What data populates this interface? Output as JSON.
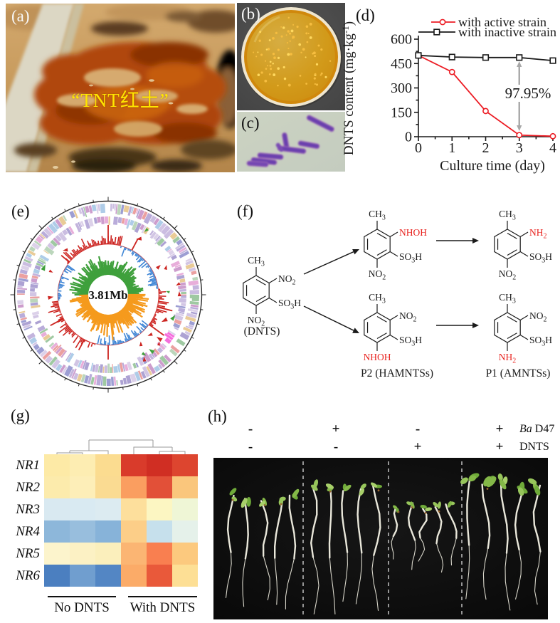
{
  "panels": {
    "a": {
      "label": "(a)",
      "overlay_text": "“TNT红土”",
      "overlay_color": "#ffe600"
    },
    "b": {
      "label": "(b)"
    },
    "c": {
      "label": "(c)"
    },
    "d": {
      "label": "(d)"
    },
    "e": {
      "label": "(e)",
      "center_label": "3.81Mb"
    },
    "f": {
      "label": "(f)",
      "red_color": "#e8231f",
      "molecules": [
        {
          "id": "dnts",
          "top": "CH3",
          "upper_right": "NO2",
          "right": "SO3H",
          "bottom": "NO2",
          "red": "",
          "caption": "(DNTS)"
        },
        {
          "id": "m1",
          "top": "CH3",
          "upper_right": "NHOH",
          "right": "SO3H",
          "bottom": "NO2",
          "red": "upper_right",
          "caption": ""
        },
        {
          "id": "r1",
          "top": "CH3",
          "upper_right": "NH2",
          "right": "SO3H",
          "bottom": "NO2",
          "red": "upper_right",
          "caption": ""
        },
        {
          "id": "m2",
          "top": "CH3",
          "upper_right": "NO2",
          "right": "SO3H",
          "bottom": "NHOH",
          "red": "bottom",
          "caption": "P2 (HAMNTSs)"
        },
        {
          "id": "r2",
          "top": "CH3",
          "upper_right": "NO2",
          "right": "SO3H",
          "bottom": "NH2",
          "red": "bottom",
          "caption": "P1 (AMNTSs)"
        }
      ]
    },
    "g": {
      "label": "(g)"
    },
    "h": {
      "label": "(h)",
      "conditions": [
        {
          "signs": [
            "-",
            "+",
            "-",
            "+"
          ],
          "factor_italic": "Ba",
          "factor_rest": " D47"
        },
        {
          "signs": [
            "-",
            "-",
            "+",
            "+"
          ],
          "factor_italic": "",
          "factor_rest": "DNTS"
        }
      ]
    }
  },
  "chart_data": [
    {
      "type": "line",
      "panel": "d",
      "title": "",
      "xlabel": "Culture time (day)",
      "ylabel": "DNTS content (mg·kg⁻¹)",
      "ylabel_parts": {
        "pre": "DNTS content (mg·kg",
        "sup": "-1",
        "post": ")"
      },
      "x": [
        0,
        1,
        2,
        3,
        4
      ],
      "xticks": [
        "0",
        "1",
        "2",
        "3",
        "4"
      ],
      "yticks": [
        0,
        150,
        300,
        450,
        600
      ],
      "ylim": [
        0,
        600
      ],
      "grid": false,
      "legend_position": "top",
      "series": [
        {
          "name": "with active strain",
          "color": "#ec1c24",
          "marker": "circle",
          "values": [
            500,
            398,
            158,
            10,
            3
          ],
          "errors": [
            10,
            12,
            9,
            4,
            4
          ]
        },
        {
          "name": "with inactive strain",
          "color": "#1a1a1a",
          "marker": "square",
          "values": [
            500,
            490,
            487,
            487,
            468
          ],
          "errors": [
            10,
            8,
            8,
            8,
            14
          ]
        }
      ],
      "annotation": {
        "text": "97.95%",
        "x": 3,
        "arrow_color": "#a8a8a8"
      }
    },
    {
      "type": "heatmap",
      "panel": "g",
      "row_labels": [
        "NR1",
        "NR2",
        "NR3",
        "NR4",
        "NR5",
        "NR6"
      ],
      "col_groups": [
        {
          "label": "No DNTS",
          "cols": 3
        },
        {
          "label": "With DNTS",
          "cols": 3
        }
      ],
      "cell_colors": [
        [
          "#fdeaa6",
          "#fdedb2",
          "#fbdc90",
          "#d93b2b",
          "#d02e23",
          "#dd452f"
        ],
        [
          "#fcebac",
          "#fdeeb8",
          "#fadb92",
          "#fa9e60",
          "#e25038",
          "#fac67c"
        ],
        [
          "#d9e9f1",
          "#d9eaf2",
          "#dcebf1",
          "#fddf9c",
          "#fcf6c2",
          "#eff6d6"
        ],
        [
          "#8db7da",
          "#98bedd",
          "#87b3d9",
          "#fcce88",
          "#c6e0ec",
          "#e5f1ea"
        ],
        [
          "#fcf4cc",
          "#fcf1c4",
          "#fbefbc",
          "#fbb573",
          "#f97f50",
          "#fcc97e"
        ],
        [
          "#4b7fc0",
          "#709ecf",
          "#5386c4",
          "#fbab68",
          "#e9593a",
          "#fddf95"
        ]
      ]
    }
  ],
  "genome": {
    "size_label": "3.81Mb",
    "gene_palette": [
      "#b9a8d8",
      "#cbbce0",
      "#9f92cc",
      "#d7c9e6",
      "#ad9ed4",
      "#c2b2dc",
      "#e4a0d4",
      "#8fc092",
      "#a0c4e4",
      "#e6c286",
      "#c58cc5",
      "#8d8ecc",
      "#e89090",
      "#b0d0b0"
    ],
    "accent_color": "#f455d8",
    "skew_out_color": "#cc2420",
    "skew_in_color": "#3f86d6",
    "gc_top_color": "#3fa03c",
    "gc_bottom_color": "#f59a1d",
    "marker_red": "#cc2420",
    "marker_green": "#3fa03c"
  },
  "photos": {
    "petri_agar": "#d09a18",
    "petri_colony": "#f6bd3f",
    "micro_bg": "#cbd2c1",
    "micro_rod": "#6a3fae",
    "soil_pool": "#b04708",
    "soil_sand": "#cda26a",
    "seedling_stem": "#e9e7da",
    "seedling_leaf": "#84b848"
  }
}
